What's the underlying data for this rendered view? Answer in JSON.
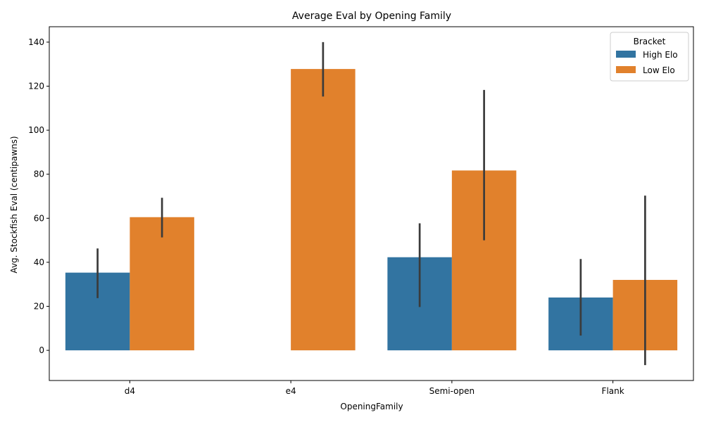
{
  "chart_data": {
    "type": "bar",
    "title": "Average Eval by Opening Family",
    "xlabel": "OpeningFamily",
    "ylabel": "Avg. Stockfish Eval (centipawns)",
    "categories": [
      "d4",
      "e4",
      "Semi-open",
      "Flank"
    ],
    "ylim": [
      -13.7,
      147
    ],
    "yticks": [
      0,
      20,
      40,
      60,
      80,
      100,
      120,
      140
    ],
    "grid": false,
    "legend": {
      "title": "Bracket",
      "placement": "top-right"
    },
    "series": [
      {
        "name": "High Elo",
        "color": "#3274a1",
        "values": [
          35.3,
          null,
          42.3,
          24.0
        ],
        "error_low": [
          23.7,
          null,
          19.7,
          6.7
        ],
        "error_high": [
          46.3,
          null,
          57.7,
          41.5
        ]
      },
      {
        "name": "Low Elo",
        "color": "#e1812c",
        "values": [
          60.5,
          127.8,
          81.7,
          32.0
        ],
        "error_low": [
          51.3,
          115.3,
          50.0,
          -6.7
        ],
        "error_high": [
          69.3,
          140.0,
          118.3,
          70.3
        ]
      }
    ],
    "errorbar_color": "#3b3b3b"
  }
}
